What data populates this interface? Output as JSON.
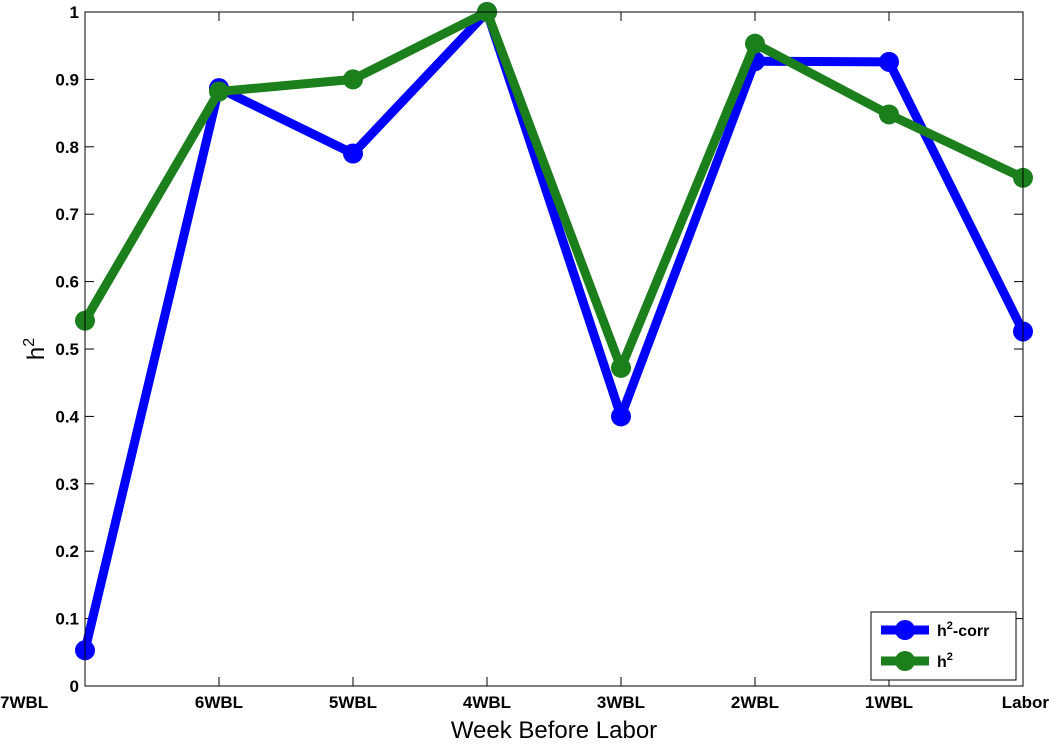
{
  "chart_data": {
    "type": "line",
    "title": "",
    "xlabel": "Week Before Labor",
    "ylabel": {
      "base": "h",
      "sup": "2"
    },
    "categories": [
      "7WBL",
      "6WBL",
      "5WBL",
      "4WBL",
      "3WBL",
      "2WBL",
      "1WBL",
      "Labor"
    ],
    "ylim": [
      0,
      1
    ],
    "yticks": [
      0,
      0.1,
      0.2,
      0.3,
      0.4,
      0.5,
      0.6,
      0.7,
      0.8,
      0.9,
      1
    ],
    "ytick_labels": [
      "0",
      "0.1",
      "0.2",
      "0.3",
      "0.4",
      "0.5",
      "0.6",
      "0.7",
      "0.8",
      "0.9",
      "1"
    ],
    "grid": false,
    "legend_position": "bottom-right",
    "series": [
      {
        "name_base": "h",
        "name_sup": "2",
        "name_suffix": "-corr",
        "color": "#0000ff",
        "values": [
          0.053,
          0.887,
          0.79,
          1.0,
          0.4,
          0.927,
          0.926,
          0.526
        ]
      },
      {
        "name_base": "h",
        "name_sup": "2",
        "name_suffix": "",
        "color": "#1b7f1b",
        "values": [
          0.542,
          0.882,
          0.9,
          1.0,
          0.472,
          0.953,
          0.848,
          0.754
        ]
      }
    ]
  }
}
